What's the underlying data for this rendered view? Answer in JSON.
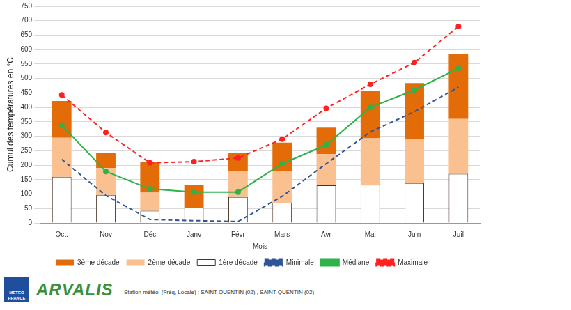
{
  "chart_data": {
    "type": "bar",
    "stacked": true,
    "grid": true,
    "legend": "bottom",
    "y_label": "Cumul des températures en °C",
    "x_label": "Mois",
    "categories": [
      "Oct.",
      "Nov",
      "Déc",
      "Janv",
      "Févr",
      "Mars",
      "Avr",
      "Mai",
      "Juin",
      "Juil"
    ],
    "ylim": [
      0,
      750
    ],
    "yticks": [
      0,
      50,
      100,
      150,
      200,
      250,
      300,
      350,
      400,
      450,
      500,
      550,
      600,
      650,
      700,
      750
    ],
    "series": [
      {
        "name": "3ème décade",
        "type": "bar",
        "color": "#e36c09",
        "values": [
          127,
          52,
          105,
          79,
          62,
          98,
          92,
          164,
          192,
          226
        ]
      },
      {
        "name": "2ème décade",
        "type": "bar",
        "color": "#fac090",
        "values": [
          135,
          93,
          63,
          0,
          90,
          110,
          108,
          161,
          154,
          190
        ]
      },
      {
        "name": "1ère décade",
        "type": "bar",
        "color": "#ffffff",
        "values": [
          160,
          97,
          42,
          53,
          90,
          70,
          130,
          132,
          138,
          170
        ]
      },
      {
        "name": "Minimale",
        "type": "line",
        "color": "#2f5597",
        "line_style": "dashed",
        "marker": "none",
        "values": [
          220,
          95,
          12,
          8,
          5,
          92,
          205,
          315,
          385,
          470
        ]
      },
      {
        "name": "Médiane",
        "type": "line",
        "color": "#2db34a",
        "line_style": "solid",
        "marker": "circle",
        "values": [
          338,
          178,
          118,
          107,
          107,
          205,
          270,
          400,
          460,
          535
        ]
      },
      {
        "name": "Maximale",
        "type": "line",
        "color": "#ff2020",
        "line_style": "dashed",
        "marker": "circle",
        "values": [
          443,
          313,
          208,
          212,
          225,
          290,
          397,
          480,
          555,
          680
        ]
      }
    ]
  },
  "footer": {
    "logos": [
      "METEO FRANCE",
      "ARVALIS"
    ],
    "station": "Station météo. (Fréq, Locale) : SAINT QUENTIN (02) , SAINT QUENTIN (02)"
  }
}
